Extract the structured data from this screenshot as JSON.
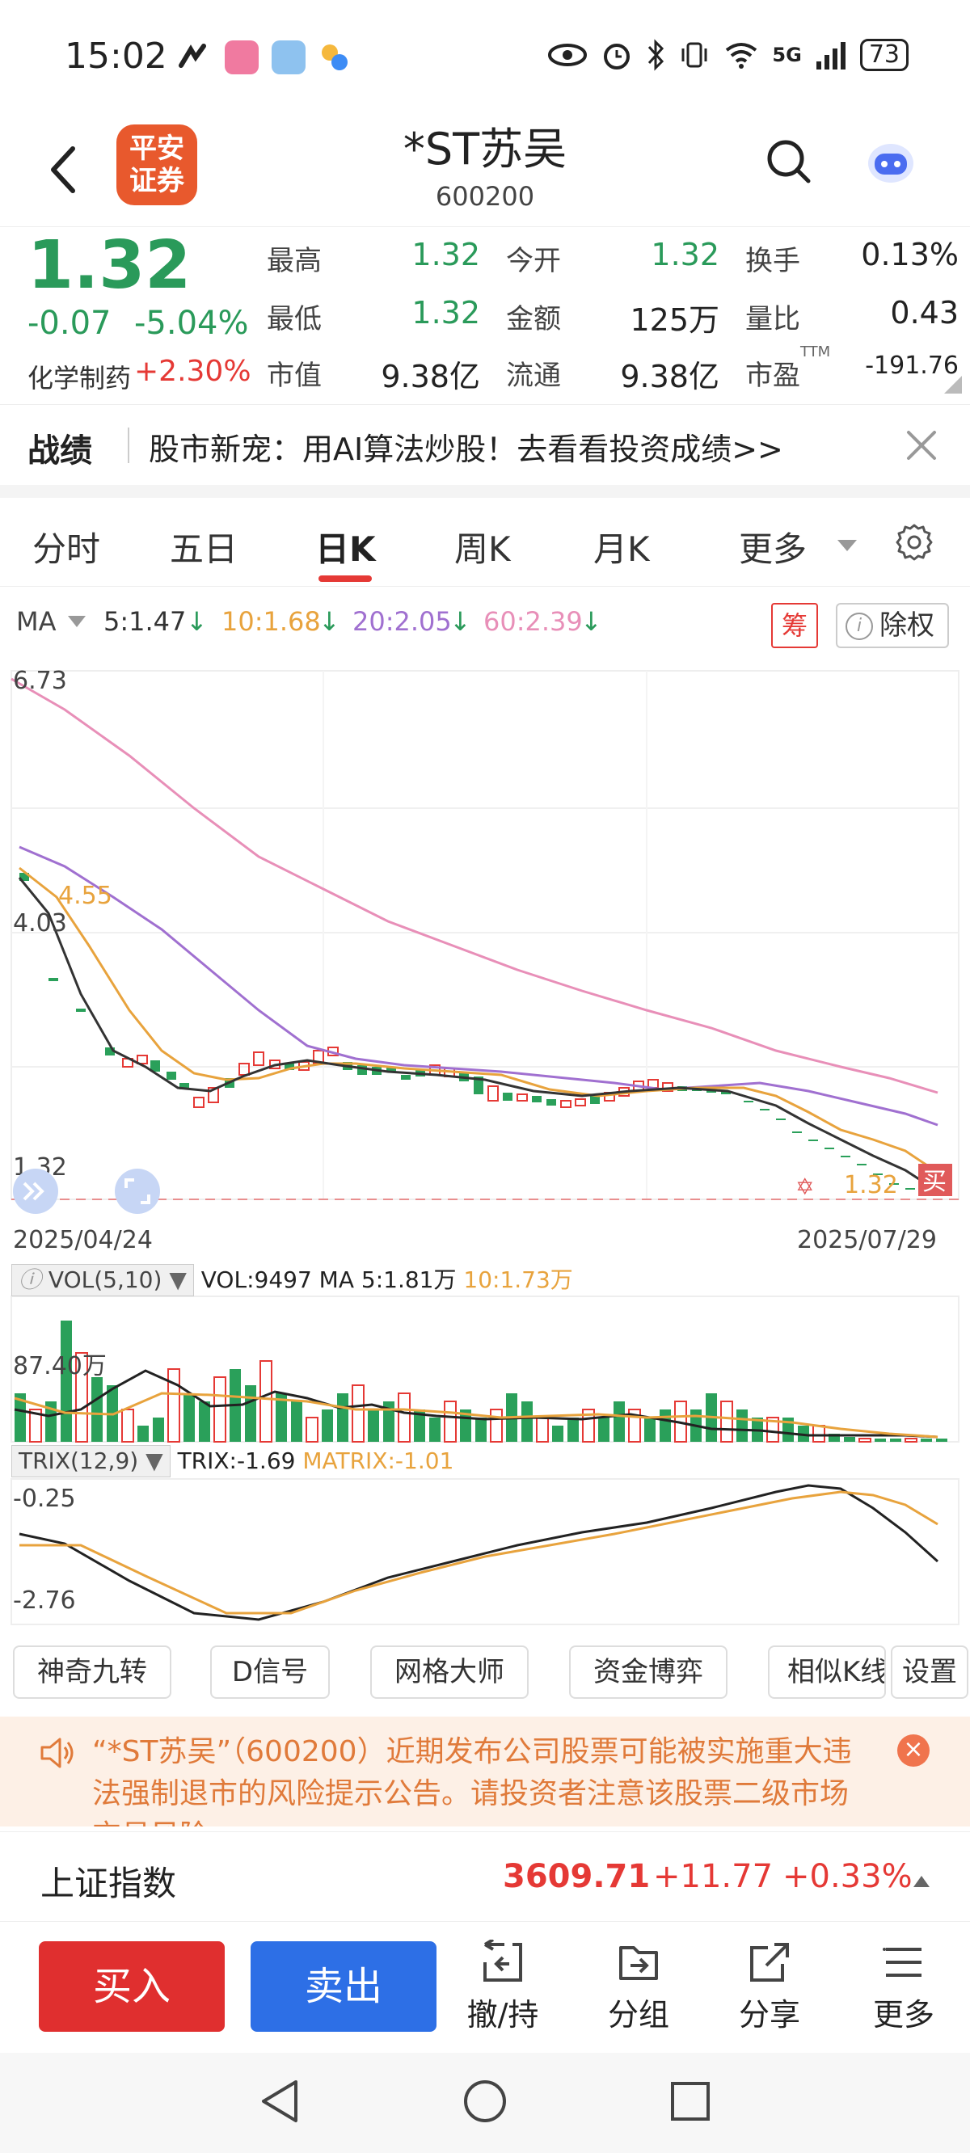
{
  "status": {
    "time": "15:02",
    "signal": "5G",
    "battery": "73"
  },
  "header": {
    "logo_line1": "平安",
    "logo_line2": "证券",
    "title": "*ST苏吴",
    "code": "600200"
  },
  "quote": {
    "price": "1.32",
    "change": "-0.07",
    "change_pct": "-5.04%",
    "sector": "化学制药",
    "sector_change": "+2.30%",
    "grid": [
      {
        "label": "最高",
        "value": "1.32",
        "color": "#2a9a5a"
      },
      {
        "label": "今开",
        "value": "1.32",
        "color": "#2a9a5a"
      },
      {
        "label": "换手",
        "value": "0.13%",
        "color": "#222222"
      },
      {
        "label": "最低",
        "value": "1.32",
        "color": "#2a9a5a"
      },
      {
        "label": "金额",
        "value": "125万",
        "color": "#222222"
      },
      {
        "label": "量比",
        "value": "0.43",
        "color": "#222222"
      },
      {
        "label": "市值",
        "value": "9.38亿",
        "color": "#222222"
      },
      {
        "label": "流通",
        "value": "9.38亿",
        "color": "#222222"
      },
      {
        "label": "市盈",
        "value": "-191.76",
        "color": "#222222"
      }
    ],
    "pe_sup": "TTM"
  },
  "banner": {
    "tag": "战绩",
    "text": "股市新宠：用AI算法炒股！去看看投资成绩>>"
  },
  "tabs": [
    "分时",
    "五日",
    "日K",
    "周K",
    "月K",
    "更多"
  ],
  "ma": {
    "label": "MA",
    "ma5": "5:1.47",
    "ma10": "10:1.68",
    "ma20": "20:2.05",
    "ma60": "60:2.39",
    "chou": "筹",
    "chuquan": "除权",
    "colors": {
      "ma5": "#333333",
      "ma10": "#e8a33d",
      "ma20": "#a070d0",
      "ma60": "#e88fb8"
    }
  },
  "kline": {
    "max_label": "6.73",
    "high_marker": "4.55",
    "mid_label": "4.03",
    "min_label": "1.32",
    "last_price": "1.32",
    "buy_tag": "买",
    "start_date": "2025/04/24",
    "end_date": "2025/07/29"
  },
  "vol": {
    "title": "VOL(5,10)",
    "vol": "VOL:9497",
    "ma5": "MA 5:1.81万",
    "ma10": "10:1.73万",
    "max_label": "87.40万"
  },
  "trix": {
    "title": "TRIX(12,9)",
    "trix": "TRIX:-1.69",
    "matrix": "MATRIX:-1.01",
    "top_label": "-0.25",
    "bottom_label": "-2.76"
  },
  "indicators": [
    "神奇九转",
    "D信号",
    "网格大师",
    "资金博弈",
    "相似K线",
    "设置"
  ],
  "risk": {
    "text": "“*ST苏吴”（600200）近期发布公司股票可能被实施重大违法强制退市的风险提示公告。请投资者注意该股票二级市场交易风险。"
  },
  "index": {
    "name": "上证指数",
    "value": "3609.71",
    "change": "+11.77",
    "change_pct": "+0.33%"
  },
  "actions": {
    "buy": "买入",
    "sell": "卖出",
    "items": [
      "撤/持",
      "分组",
      "分享",
      "更多"
    ]
  }
}
